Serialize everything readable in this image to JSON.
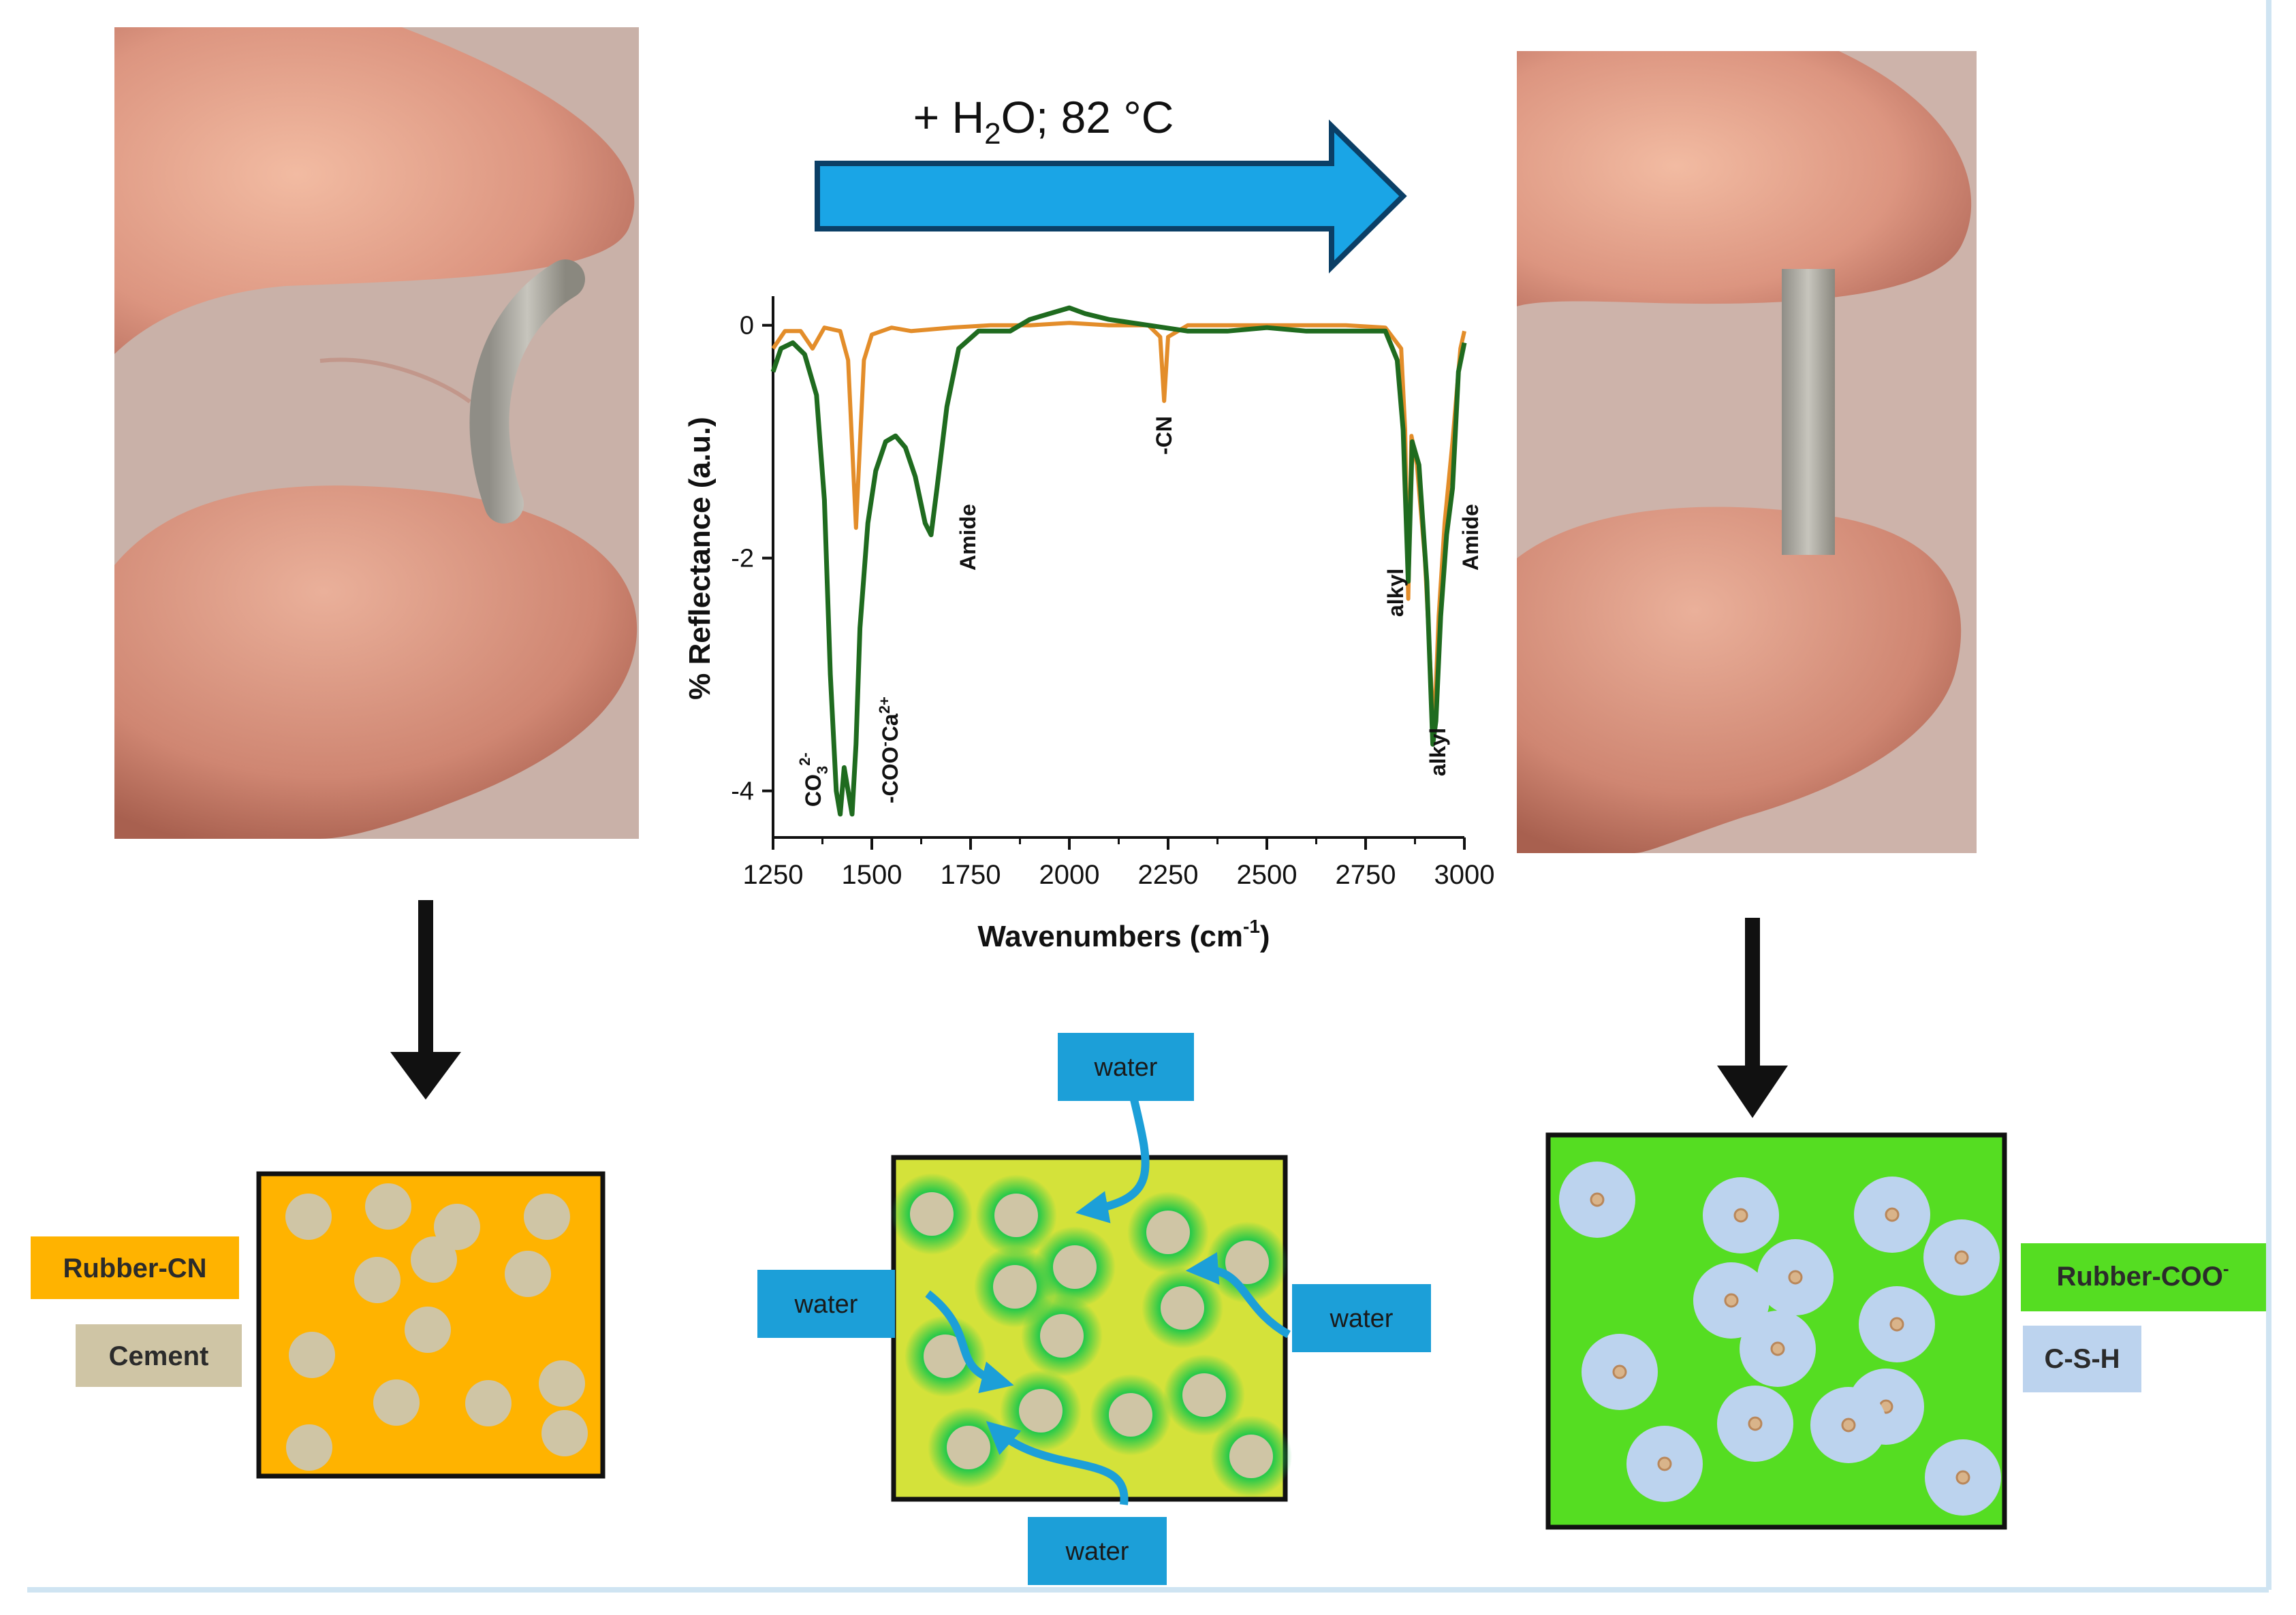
{
  "arrow_label": {
    "prefix": "+ H",
    "sub": "2",
    "suffix": "O; 82 °C"
  },
  "legend": {
    "rubber_cn": "Rubber-CN",
    "cement": "Cement",
    "rubber_coo": "Rubber-COO",
    "rubber_coo_sup": "-",
    "csh": "C-S-H"
  },
  "water_label": "water",
  "colors": {
    "arrow_blue": "#1aa5e6",
    "rubber_cn": "#ffb300",
    "cement": "#cfc5a5",
    "rubber_mid": "#d4e23a",
    "rubber_coo": "#55dd22",
    "csh": "#bcd3ee",
    "water": "#1c9fd8",
    "trace_before": "#e38d2a",
    "trace_after": "#1f6b1f"
  },
  "chart_data": {
    "type": "line",
    "ylabel": "% Reflectance (a.u.)",
    "xlabel": "Wavenumbers (cm",
    "xlabel_sup": "-1",
    "xlabel_end": ")",
    "xlim": [
      1250,
      3000
    ],
    "ylim": [
      -4.4,
      0.25
    ],
    "x_ticks": [
      "1250",
      "1500",
      "1750",
      "2000",
      "2250",
      "2500",
      "2750",
      "3000"
    ],
    "y_ticks": [
      "0",
      "-2",
      "-4"
    ],
    "series": [
      {
        "points": [
          [
            1250,
            -0.2
          ],
          [
            1280,
            -0.05
          ],
          [
            1320,
            -0.05
          ],
          [
            1350,
            -0.2
          ],
          [
            1380,
            -0.02
          ],
          [
            1420,
            -0.05
          ],
          [
            1440,
            -0.3
          ],
          [
            1460,
            -1.74
          ],
          [
            1480,
            -0.3
          ],
          [
            1500,
            -0.08
          ],
          [
            1550,
            -0.02
          ],
          [
            1600,
            -0.05
          ],
          [
            1700,
            -0.02
          ],
          [
            1800,
            0.0
          ],
          [
            1900,
            0.0
          ],
          [
            2000,
            0.02
          ],
          [
            2100,
            0.0
          ],
          [
            2200,
            0.0
          ],
          [
            2230,
            -0.1
          ],
          [
            2240,
            -0.65
          ],
          [
            2250,
            -0.1
          ],
          [
            2300,
            0.0
          ],
          [
            2500,
            0.0
          ],
          [
            2700,
            0.0
          ],
          [
            2800,
            -0.02
          ],
          [
            2840,
            -0.2
          ],
          [
            2850,
            -0.9
          ],
          [
            2858,
            -2.35
          ],
          [
            2866,
            -0.95
          ],
          [
            2880,
            -1.2
          ],
          [
            2900,
            -2.0
          ],
          [
            2918,
            -3.2
          ],
          [
            2925,
            -3.35
          ],
          [
            2935,
            -2.5
          ],
          [
            2950,
            -1.7
          ],
          [
            2970,
            -1.0
          ],
          [
            2990,
            -0.2
          ],
          [
            3000,
            -0.05
          ]
        ]
      },
      {
        "points": [
          [
            1250,
            -0.4
          ],
          [
            1270,
            -0.2
          ],
          [
            1300,
            -0.15
          ],
          [
            1330,
            -0.25
          ],
          [
            1360,
            -0.6
          ],
          [
            1380,
            -1.5
          ],
          [
            1395,
            -3.0
          ],
          [
            1410,
            -4.0
          ],
          [
            1420,
            -4.2
          ],
          [
            1430,
            -3.8
          ],
          [
            1440,
            -4.0
          ],
          [
            1450,
            -4.2
          ],
          [
            1460,
            -3.6
          ],
          [
            1470,
            -2.6
          ],
          [
            1490,
            -1.7
          ],
          [
            1510,
            -1.25
          ],
          [
            1535,
            -1.0
          ],
          [
            1560,
            -0.95
          ],
          [
            1585,
            -1.05
          ],
          [
            1610,
            -1.3
          ],
          [
            1635,
            -1.7
          ],
          [
            1650,
            -1.8
          ],
          [
            1665,
            -1.4
          ],
          [
            1690,
            -0.7
          ],
          [
            1720,
            -0.2
          ],
          [
            1770,
            -0.05
          ],
          [
            1850,
            -0.05
          ],
          [
            1900,
            0.05
          ],
          [
            1950,
            0.1
          ],
          [
            2000,
            0.15
          ],
          [
            2040,
            0.1
          ],
          [
            2100,
            0.05
          ],
          [
            2200,
            0.0
          ],
          [
            2300,
            -0.05
          ],
          [
            2400,
            -0.05
          ],
          [
            2500,
            -0.02
          ],
          [
            2600,
            -0.05
          ],
          [
            2700,
            -0.05
          ],
          [
            2800,
            -0.05
          ],
          [
            2830,
            -0.3
          ],
          [
            2845,
            -0.9
          ],
          [
            2858,
            -2.2
          ],
          [
            2868,
            -1.0
          ],
          [
            2885,
            -1.2
          ],
          [
            2905,
            -2.2
          ],
          [
            2920,
            -3.6
          ],
          [
            2928,
            -3.4
          ],
          [
            2940,
            -2.5
          ],
          [
            2955,
            -1.8
          ],
          [
            2970,
            -1.4
          ],
          [
            2985,
            -0.4
          ],
          [
            3000,
            -0.15
          ]
        ]
      }
    ],
    "annotations": {
      "co3": "CO",
      "co3_sub": "3",
      "co3_sup": "2-",
      "coo_ca_a": "-COO",
      "coo_ca_sup1": "-",
      "coo_ca_b": "Ca",
      "coo_ca_sup2": "2+",
      "amide": "Amide",
      "cn": "-CN",
      "alkyl": "alkyl"
    }
  }
}
